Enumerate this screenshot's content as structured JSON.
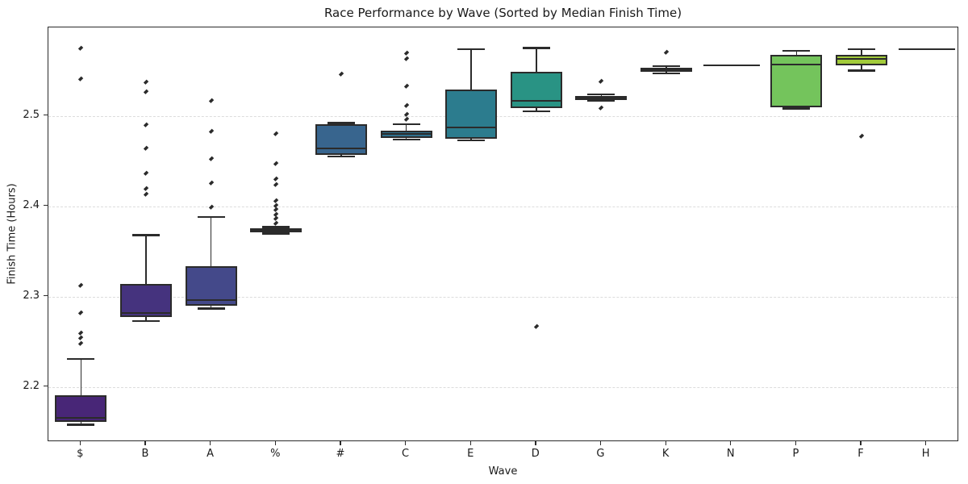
{
  "chart_data": {
    "type": "box",
    "title": "Race Performance by Wave (Sorted by Median Finish Time)",
    "xlabel": "Wave",
    "ylabel": "Finish Time (Hours)",
    "ylim": [
      2.139,
      2.598
    ],
    "yticks": [
      2.2,
      2.3,
      2.4,
      2.5
    ],
    "grid": "horizontal-dashed",
    "legend": "none",
    "marker": "black-diamond",
    "edge_color": "#2b2b2b",
    "grid_color": "#dcdcdc",
    "text_color": "#1a1a1a",
    "background_color": "#ffffff",
    "categories": [
      "$",
      "B",
      "A",
      "%",
      "#",
      "C",
      "E",
      "D",
      "G",
      "K",
      "N",
      "P",
      "F",
      "H"
    ],
    "boxes": [
      {
        "label": "$",
        "color": "#482677",
        "whislo": 2.158,
        "q1": 2.161,
        "med": 2.166,
        "q3": 2.191,
        "whishi": 2.231,
        "fliers": [
          2.248,
          2.254,
          2.26,
          2.282,
          2.312,
          2.541,
          2.575
        ]
      },
      {
        "label": "B",
        "color": "#45337e",
        "whislo": 2.273,
        "q1": 2.277,
        "med": 2.282,
        "q3": 2.314,
        "whishi": 2.368,
        "fliers": [
          2.413,
          2.419,
          2.436,
          2.464,
          2.49,
          2.527,
          2.537
        ]
      },
      {
        "label": "A",
        "color": "#44498a",
        "whislo": 2.287,
        "q1": 2.29,
        "med": 2.296,
        "q3": 2.334,
        "whishi": 2.388,
        "fliers": [
          2.399,
          2.426,
          2.452,
          2.483,
          2.517
        ]
      },
      {
        "label": "%",
        "color": "#3b568b",
        "whislo": 2.37,
        "q1": 2.371,
        "med": 2.373,
        "q3": 2.376,
        "whishi": 2.377,
        "fliers": [
          2.381,
          2.386,
          2.391,
          2.396,
          2.401,
          2.406,
          2.424,
          2.43,
          2.447,
          2.48
        ]
      },
      {
        "label": "#",
        "color": "#38658e",
        "whislo": 2.455,
        "q1": 2.457,
        "med": 2.464,
        "q3": 2.491,
        "whishi": 2.492,
        "fliers": [
          2.546
        ]
      },
      {
        "label": "C",
        "color": "#2f708e",
        "whislo": 2.474,
        "q1": 2.476,
        "med": 2.48,
        "q3": 2.484,
        "whishi": 2.491,
        "fliers": [
          2.496,
          2.502,
          2.511,
          2.533,
          2.563,
          2.569
        ]
      },
      {
        "label": "E",
        "color": "#2c7c8e",
        "whislo": 2.473,
        "q1": 2.475,
        "med": 2.487,
        "q3": 2.529,
        "whishi": 2.574,
        "fliers": []
      },
      {
        "label": "D",
        "color": "#299384",
        "whislo": 2.505,
        "q1": 2.509,
        "med": 2.517,
        "q3": 2.549,
        "whishi": 2.575,
        "fliers": [
          2.267
        ]
      },
      {
        "label": "G",
        "color": "#2fa57f",
        "whislo": 2.517,
        "q1": 2.518,
        "med": 2.52,
        "q3": 2.522,
        "whishi": 2.524,
        "fliers": [
          2.509,
          2.538
        ]
      },
      {
        "label": "K",
        "color": "#40b973",
        "whislo": 2.547,
        "q1": 2.549,
        "med": 2.551,
        "q3": 2.553,
        "whishi": 2.555,
        "fliers": [
          2.57
        ]
      },
      {
        "label": "N",
        "color": "#5ac864",
        "whislo": 2.556,
        "q1": 2.556,
        "med": 2.556,
        "q3": 2.556,
        "whishi": 2.556,
        "fliers": []
      },
      {
        "label": "P",
        "color": "#74c45c",
        "whislo": 2.508,
        "q1": 2.51,
        "med": 2.557,
        "q3": 2.568,
        "whishi": 2.572,
        "fliers": []
      },
      {
        "label": "F",
        "color": "#a2cb3a",
        "whislo": 2.55,
        "q1": 2.556,
        "med": 2.563,
        "q3": 2.568,
        "whishi": 2.574,
        "fliers": [
          2.477
        ]
      },
      {
        "label": "H",
        "color": "#d8e225",
        "whislo": 2.574,
        "q1": 2.574,
        "med": 2.574,
        "q3": 2.574,
        "whishi": 2.574,
        "fliers": []
      }
    ]
  }
}
